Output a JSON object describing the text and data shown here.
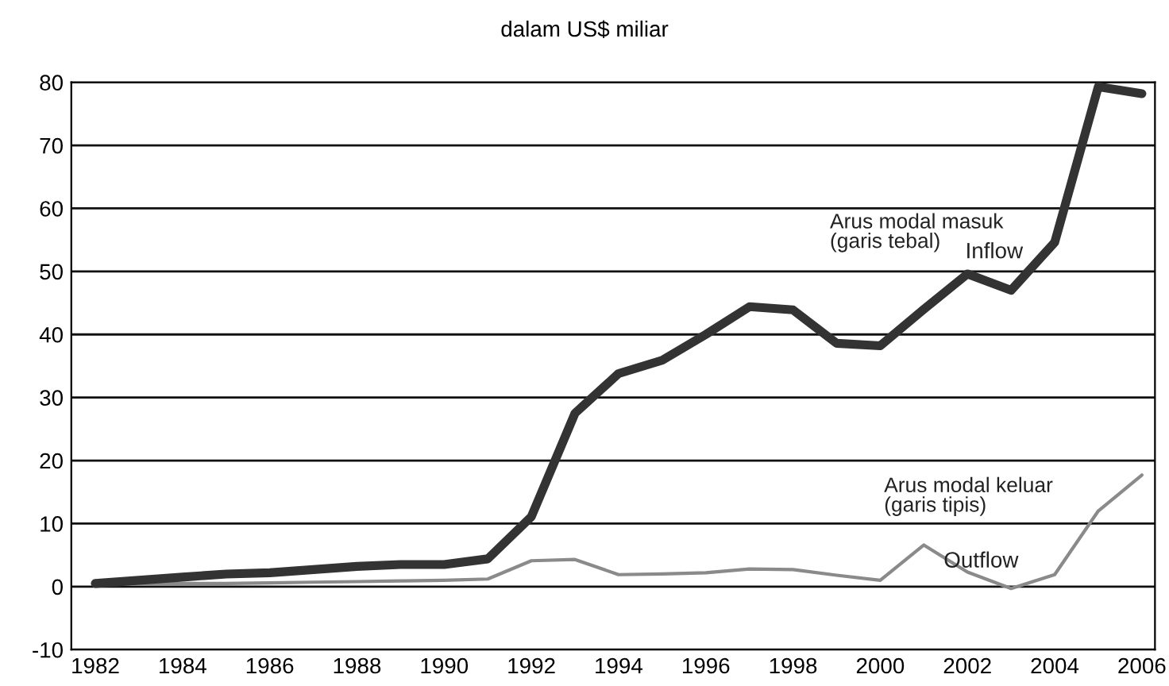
{
  "chart_data": {
    "type": "line",
    "title": "dalam US$ miliar",
    "x": [
      1982,
      1983,
      1984,
      1985,
      1986,
      1987,
      1988,
      1989,
      1990,
      1991,
      1992,
      1993,
      1994,
      1995,
      1996,
      1997,
      1998,
      1999,
      2000,
      2001,
      2002,
      2003,
      2004,
      2005,
      2006
    ],
    "series": [
      {
        "name": "Inflow",
        "color": "#333333",
        "values": [
          0.5,
          1,
          1.5,
          2,
          2.2,
          2.7,
          3.2,
          3.5,
          3.5,
          4.4,
          11.1,
          27.5,
          33.8,
          35.9,
          40,
          44.4,
          43.9,
          38.6,
          38.2,
          44,
          49.6,
          47,
          54.6,
          79.3,
          78.2
        ]
      },
      {
        "name": "Outflow",
        "color": "#8a8a8a",
        "values": [
          0.3,
          0.4,
          0.5,
          0.5,
          0.6,
          0.7,
          0.8,
          0.9,
          1,
          1.2,
          4.1,
          4.3,
          1.9,
          2,
          2.2,
          2.8,
          2.7,
          1.8,
          1,
          6.6,
          2.3,
          -0.3,
          1.9,
          12,
          17.7
        ]
      }
    ],
    "annotations": [
      "Arus modal masuk\n(garis tebal)",
      "Arus modal keluar\n(garis tipis)"
    ],
    "xlim": [
      1981.45,
      2006.3
    ],
    "xticks": [
      1982,
      1984,
      1986,
      1988,
      1990,
      1992,
      1994,
      1996,
      1998,
      2000,
      2002,
      2004,
      2006
    ],
    "ylim": [
      -10,
      80
    ],
    "yticks": [
      -10,
      0,
      10,
      20,
      30,
      40,
      50,
      60,
      70,
      80
    ],
    "grid": "y",
    "legend": false,
    "marker": "none",
    "line_style": "solid"
  }
}
